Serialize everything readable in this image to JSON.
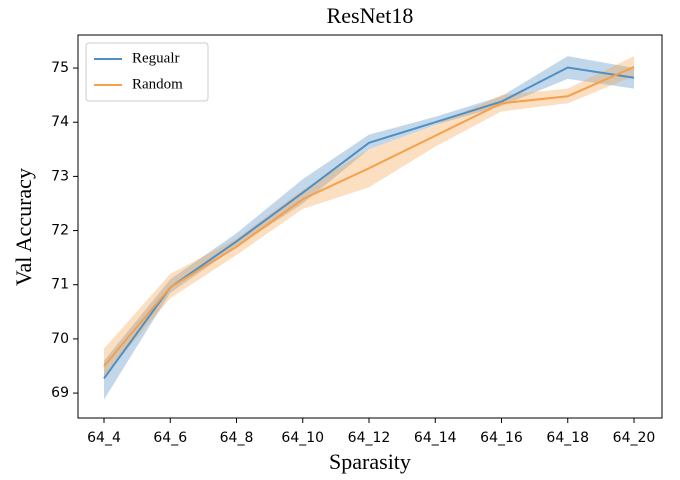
{
  "chart_data": {
    "type": "line",
    "title": "ResNet18",
    "x_label": "Sparasity",
    "y_label": "Val Accuracy",
    "categories": [
      "64_4",
      "64_6",
      "64_8",
      "64_10",
      "64_12",
      "64_14",
      "64_16",
      "64_18",
      "64_20"
    ],
    "series": [
      {
        "name": "Regualr",
        "color": "#4f8fc4",
        "values": [
          69.27,
          70.95,
          71.8,
          72.7,
          73.62,
          74.0,
          74.38,
          75.01,
          74.82
        ],
        "lower": [
          68.88,
          70.85,
          71.7,
          72.5,
          73.5,
          73.95,
          74.3,
          74.8,
          74.62
        ],
        "upper": [
          69.6,
          71.1,
          71.95,
          72.95,
          73.77,
          74.1,
          74.48,
          75.22,
          75.0
        ]
      },
      {
        "name": "Random",
        "color": "#f5a04a",
        "values": [
          69.5,
          70.95,
          71.7,
          72.58,
          73.15,
          73.75,
          74.35,
          74.48,
          75.02
        ],
        "lower": [
          69.3,
          70.75,
          71.55,
          72.4,
          72.8,
          73.55,
          74.2,
          74.35,
          74.85
        ],
        "upper": [
          69.82,
          71.2,
          71.85,
          72.75,
          73.5,
          73.95,
          74.5,
          74.62,
          75.22
        ]
      }
    ],
    "ylim": [
      68.54,
      75.61
    ],
    "yticks": [
      69,
      70,
      71,
      72,
      73,
      74,
      75
    ],
    "grid": false,
    "legend": "upper left"
  }
}
